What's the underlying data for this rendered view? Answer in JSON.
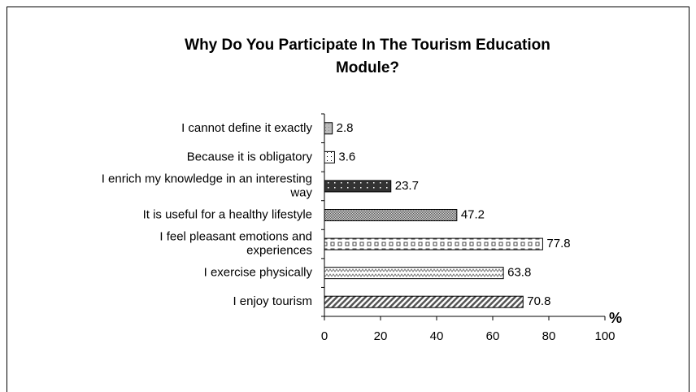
{
  "chart_data": {
    "type": "bar",
    "orientation": "horizontal",
    "title": "Why Do You Participate In The Tourism Education\nModule?",
    "x_label": "%",
    "categories": [
      "I cannot define it exactly",
      "Because it is obligatory",
      "I enrich my knowledge in an interesting\nway",
      "It is useful for a healthy lifestyle",
      "I feel pleasant emotions and\nexperiences",
      "I exercise physically",
      "I enjoy tourism"
    ],
    "values": [
      2.8,
      3.6,
      23.7,
      47.2,
      77.8,
      63.8,
      70.8
    ],
    "patterns": [
      "light-gray",
      "sparse-dots",
      "dark-dots",
      "fine-check",
      "bricks",
      "zigzag",
      "diagonal"
    ],
    "xlim": [
      0,
      100
    ],
    "xticks": [
      0,
      20,
      40,
      60,
      80,
      100
    ],
    "grid": false
  }
}
